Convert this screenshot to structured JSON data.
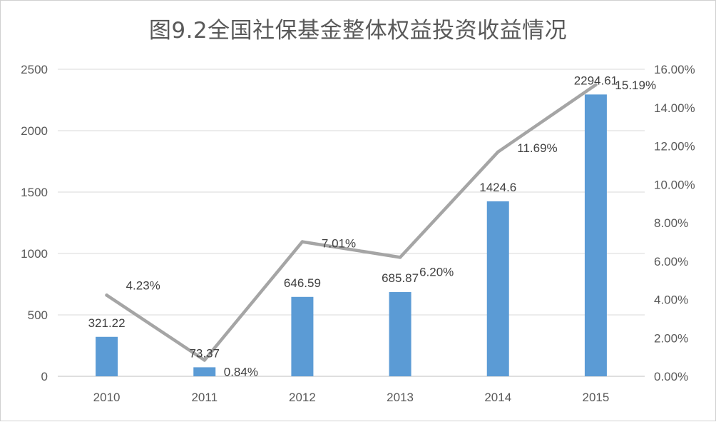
{
  "chart_data": {
    "type": "bar",
    "title": "图9.2全国社保基金整体权益投资收益情况",
    "categories": [
      "2010",
      "2011",
      "2012",
      "2013",
      "2014",
      "2015"
    ],
    "series": [
      {
        "type": "bar",
        "values": [
          321.22,
          73.37,
          646.59,
          685.87,
          1424.6,
          2294.61
        ],
        "labels": [
          "321.22",
          "73.37",
          "646.59",
          "685.87",
          "1424.6",
          "2294.61"
        ],
        "color": "#5b9bd5",
        "axis": "left"
      },
      {
        "type": "line",
        "values": [
          4.23,
          0.84,
          7.01,
          6.2,
          11.69,
          15.19
        ],
        "labels": [
          "4.23%",
          "0.84%",
          "7.01%",
          "6.20%",
          "11.69%",
          "15.19%"
        ],
        "color": "#a5a5a5",
        "axis": "right"
      }
    ],
    "y_left": {
      "range": [
        0,
        2500
      ],
      "ticks": [
        0,
        500,
        1000,
        1500,
        2000,
        2500
      ],
      "tick_labels": [
        "0",
        "500",
        "1000",
        "1500",
        "2000",
        "2500"
      ]
    },
    "y_right": {
      "range": [
        0,
        16
      ],
      "ticks": [
        0,
        2,
        4,
        6,
        8,
        10,
        12,
        14,
        16
      ],
      "tick_labels": [
        "0.00%",
        "2.00%",
        "4.00%",
        "6.00%",
        "8.00%",
        "10.00%",
        "12.00%",
        "14.00%",
        "16.00%"
      ]
    },
    "grid": true,
    "legend": "none"
  }
}
